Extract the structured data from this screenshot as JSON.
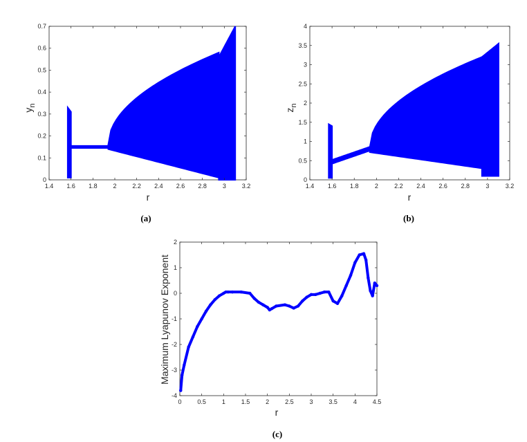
{
  "colors": {
    "series": "#0000ff",
    "axis": "#262626"
  },
  "chart_data": [
    {
      "type": "scatter",
      "panel_label": "(a)",
      "xlabel": "r",
      "ylabel": "y",
      "ylabel_sub": "n",
      "xlim": [
        1.4,
        3.2
      ],
      "ylim": [
        0,
        0.7
      ],
      "xticks": [
        "1.4",
        "1.6",
        "1.8",
        "2",
        "2.2",
        "2.4",
        "2.6",
        "2.8",
        "3",
        "3.2"
      ],
      "yticks": [
        "0",
        "0.1",
        "0.2",
        "0.3",
        "0.4",
        "0.5",
        "0.6",
        "0.7"
      ],
      "bands": [
        {
          "x_start": 1.57,
          "x_end": 1.6,
          "lower_start": 0.01,
          "lower_end": 0.01,
          "upper_start": 0.33,
          "upper_end": 0.31
        },
        {
          "x_start": 1.6,
          "x_end": 1.94,
          "lower_start": 0.145,
          "lower_end": 0.145,
          "upper_start": 0.155,
          "upper_end": 0.155
        },
        {
          "x_start": 1.94,
          "x_end": 2.95,
          "lower_start": 0.14,
          "lower_end": 0.01,
          "upper_start": 0.16,
          "upper_end": 0.58,
          "shape": "sqrt"
        },
        {
          "x_start": 2.95,
          "x_end": 3.1,
          "lower_start": 0.0,
          "lower_end": 0.0,
          "upper_start": 0.56,
          "upper_end": 0.7
        }
      ]
    },
    {
      "type": "scatter",
      "panel_label": "(b)",
      "xlabel": "r",
      "ylabel": "z",
      "ylabel_sub": "n",
      "xlim": [
        1.4,
        3.2
      ],
      "ylim": [
        0,
        4
      ],
      "xticks": [
        "1.4",
        "1.6",
        "1.8",
        "2",
        "2.2",
        "2.4",
        "2.6",
        "2.8",
        "3",
        "3.2"
      ],
      "yticks": [
        "0",
        "0.5",
        "1",
        "1.5",
        "2",
        "2.5",
        "3",
        "3.5",
        "4"
      ],
      "bands": [
        {
          "x_start": 1.57,
          "x_end": 1.6,
          "lower_start": 0.05,
          "lower_end": 0.05,
          "upper_start": 1.45,
          "upper_end": 1.4
        },
        {
          "x_start": 1.6,
          "x_end": 1.94,
          "lower_start": 0.42,
          "lower_end": 0.76,
          "upper_start": 0.52,
          "upper_end": 0.86
        },
        {
          "x_start": 1.94,
          "x_end": 2.95,
          "lower_start": 0.72,
          "lower_end": 0.3,
          "upper_start": 0.85,
          "upper_end": 3.2,
          "shape": "sqrt"
        },
        {
          "x_start": 2.95,
          "x_end": 3.1,
          "lower_start": 0.1,
          "lower_end": 0.1,
          "upper_start": 3.2,
          "upper_end": 3.55
        }
      ]
    },
    {
      "type": "line",
      "panel_label": "(c)",
      "xlabel": "r",
      "ylabel": "Maximum Lyapunov Exponent",
      "xlim": [
        0,
        4.5
      ],
      "ylim": [
        -4,
        2
      ],
      "xticks": [
        "0",
        "0.5",
        "1",
        "1.5",
        "2",
        "2.5",
        "3",
        "3.5",
        "4",
        "4.5"
      ],
      "yticks": [
        "-4",
        "-3",
        "-2",
        "-1",
        "0",
        "1",
        "2"
      ],
      "x": [
        0.02,
        0.05,
        0.1,
        0.2,
        0.3,
        0.4,
        0.5,
        0.6,
        0.7,
        0.8,
        0.9,
        1.0,
        1.05,
        1.1,
        1.2,
        1.4,
        1.6,
        1.7,
        1.8,
        1.9,
        2.0,
        2.05,
        2.1,
        2.2,
        2.4,
        2.5,
        2.6,
        2.7,
        2.8,
        2.9,
        3.0,
        3.1,
        3.2,
        3.3,
        3.4,
        3.5,
        3.6,
        3.7,
        3.8,
        3.9,
        4.0,
        4.1,
        4.2,
        4.25,
        4.3,
        4.35,
        4.4,
        4.45,
        4.5
      ],
      "y": [
        -3.8,
        -3.2,
        -2.8,
        -2.1,
        -1.7,
        -1.3,
        -1.0,
        -0.7,
        -0.45,
        -0.25,
        -0.1,
        0.0,
        0.05,
        0.05,
        0.05,
        0.05,
        0.0,
        -0.2,
        -0.35,
        -0.45,
        -0.55,
        -0.65,
        -0.6,
        -0.5,
        -0.45,
        -0.5,
        -0.58,
        -0.5,
        -0.3,
        -0.15,
        -0.05,
        -0.05,
        0.0,
        0.05,
        0.05,
        -0.3,
        -0.4,
        -0.1,
        0.3,
        0.7,
        1.2,
        1.5,
        1.55,
        1.3,
        0.6,
        0.1,
        -0.1,
        0.4,
        0.3
      ]
    }
  ]
}
